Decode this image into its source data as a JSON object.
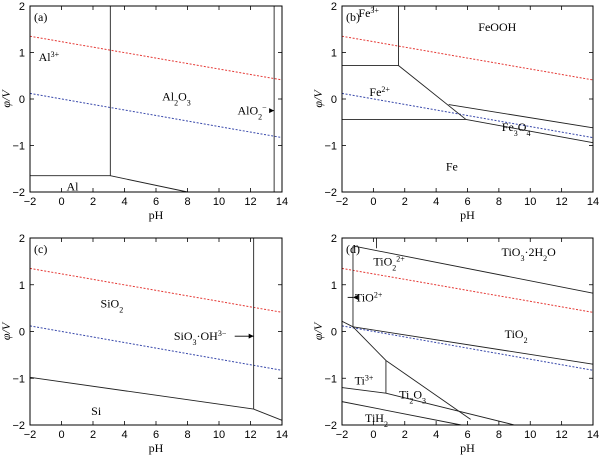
{
  "chart_data": [
    {
      "type": "line",
      "panel_label": "(a)",
      "xlabel": "pH",
      "ylabel": "φ/V",
      "xlim": [
        -2,
        14
      ],
      "ylim": [
        -2,
        2
      ],
      "xticks": [
        -2,
        0,
        2,
        4,
        6,
        8,
        10,
        12,
        14
      ],
      "yticks": [
        -2,
        -1,
        0,
        1,
        2
      ],
      "water_lines": {
        "oxygen": {
          "x": [
            -2,
            14
          ],
          "y": [
            1.35,
            0.41
          ],
          "color": "#e53935"
        },
        "hydrogen": {
          "x": [
            -2,
            14
          ],
          "y": [
            0.12,
            -0.83
          ],
          "color": "#3949ab"
        }
      },
      "boundaries": [
        {
          "x": [
            3.1,
            3.1
          ],
          "y": [
            2,
            -1.65
          ]
        },
        {
          "x": [
            -2,
            3.1
          ],
          "y": [
            -1.65,
            -1.65
          ]
        },
        {
          "x": [
            3.1,
            8.0
          ],
          "y": [
            -1.65,
            -2.0
          ]
        },
        {
          "x": [
            13.5,
            13.5
          ],
          "y": [
            2,
            -2
          ]
        }
      ],
      "regions": [
        {
          "label": "Al³⁺",
          "x": -0.8,
          "y": 0.9
        },
        {
          "label": "Al₂O₃",
          "x": 7.3,
          "y": 0.05
        },
        {
          "label": "AlO₂⁻",
          "x": 12.1,
          "y": -0.25,
          "arrow_to": 13.5
        },
        {
          "label": "Al",
          "x": 0.7,
          "y": -1.88
        }
      ]
    },
    {
      "type": "line",
      "panel_label": "(b)",
      "xlabel": "pH",
      "ylabel": "φ/V",
      "xlim": [
        -2,
        14
      ],
      "ylim": [
        -2,
        2
      ],
      "xticks": [
        -2,
        0,
        2,
        4,
        6,
        8,
        10,
        12,
        14
      ],
      "yticks": [
        -2,
        -1,
        0,
        1,
        2
      ],
      "water_lines": {
        "oxygen": {
          "x": [
            -2,
            14
          ],
          "y": [
            1.35,
            0.41
          ],
          "color": "#e53935"
        },
        "hydrogen": {
          "x": [
            -2,
            14
          ],
          "y": [
            0.12,
            -0.83
          ],
          "color": "#3949ab"
        }
      },
      "boundaries": [
        {
          "x": [
            1.6,
            1.6
          ],
          "y": [
            2,
            0.72
          ]
        },
        {
          "x": [
            -2,
            1.6
          ],
          "y": [
            0.72,
            0.72
          ]
        },
        {
          "x": [
            1.6,
            5.9
          ],
          "y": [
            0.72,
            -0.44
          ]
        },
        {
          "x": [
            -2,
            5.9
          ],
          "y": [
            -0.44,
            -0.44
          ]
        },
        {
          "x": [
            4.8,
            14
          ],
          "y": [
            -0.12,
            -0.62
          ]
        },
        {
          "x": [
            5.9,
            14
          ],
          "y": [
            -0.44,
            -0.94
          ]
        }
      ],
      "regions": [
        {
          "label": "Fe³⁺",
          "x": -0.3,
          "y": 1.85
        },
        {
          "label": "FeOOH",
          "x": 7.9,
          "y": 1.55
        },
        {
          "label": "Fe²⁺",
          "x": 0.4,
          "y": 0.15
        },
        {
          "label": "Fe₃O₄",
          "x": 9.1,
          "y": -0.6
        },
        {
          "label": "Fe",
          "x": 5.0,
          "y": -1.45
        }
      ]
    },
    {
      "type": "line",
      "panel_label": "(c)",
      "xlabel": "pH",
      "ylabel": "φ/V",
      "xlim": [
        -2,
        14
      ],
      "ylim": [
        -2,
        2
      ],
      "xticks": [
        -2,
        0,
        2,
        4,
        6,
        8,
        10,
        12,
        14
      ],
      "yticks": [
        -2,
        -1,
        0,
        1,
        2
      ],
      "water_lines": {
        "oxygen": {
          "x": [
            -2,
            14
          ],
          "y": [
            1.35,
            0.41
          ],
          "color": "#e53935"
        },
        "hydrogen": {
          "x": [
            -2,
            14
          ],
          "y": [
            0.12,
            -0.83
          ],
          "color": "#3949ab"
        }
      },
      "boundaries": [
        {
          "x": [
            12.2,
            12.2
          ],
          "y": [
            2,
            -1.66
          ]
        },
        {
          "x": [
            -2,
            12.2
          ],
          "y": [
            -0.98,
            -1.66
          ]
        },
        {
          "x": [
            12.2,
            14
          ],
          "y": [
            -1.66,
            -1.9
          ]
        }
      ],
      "regions": [
        {
          "label": "SiO₂",
          "x": 3.2,
          "y": 0.6
        },
        {
          "label": "SiO₃·OH³⁻",
          "x": 8.8,
          "y": -0.1,
          "arrow_to": 12.2
        },
        {
          "label": "Si",
          "x": 2.2,
          "y": -1.7
        }
      ]
    },
    {
      "type": "line",
      "panel_label": "(d)",
      "xlabel": "pH",
      "ylabel": "φ/V",
      "xlim": [
        -2,
        14
      ],
      "ylim": [
        -2,
        2
      ],
      "xticks": [
        -2,
        0,
        2,
        4,
        6,
        8,
        10,
        12,
        14
      ],
      "yticks": [
        -2,
        -1,
        0,
        1,
        2
      ],
      "water_lines": {
        "oxygen": {
          "x": [
            -2,
            14
          ],
          "y": [
            1.35,
            0.41
          ],
          "color": "#e53935"
        },
        "hydrogen": {
          "x": [
            -2,
            14
          ],
          "y": [
            0.12,
            -0.83
          ],
          "color": "#3949ab"
        }
      },
      "boundaries": [
        {
          "x": [
            -1.3,
            14
          ],
          "y": [
            1.83,
            0.82
          ]
        },
        {
          "x": [
            -1.3,
            -1.3
          ],
          "y": [
            1.83,
            0.1
          ]
        },
        {
          "x": [
            0.2,
            0.2
          ],
          "y": [
            2,
            1.78
          ]
        },
        {
          "x": [
            -2,
            -1.3
          ],
          "y": [
            0.22,
            0.1
          ]
        },
        {
          "x": [
            -1.3,
            14
          ],
          "y": [
            0.1,
            -0.7
          ]
        },
        {
          "x": [
            -1.3,
            0.8
          ],
          "y": [
            0.1,
            -0.62
          ]
        },
        {
          "x": [
            0.8,
            0.8
          ],
          "y": [
            -0.62,
            -1.32
          ]
        },
        {
          "x": [
            0.8,
            6.2
          ],
          "y": [
            -0.62,
            -1.88
          ]
        },
        {
          "x": [
            -2,
            0.8
          ],
          "y": [
            -1.2,
            -1.32
          ]
        },
        {
          "x": [
            0.8,
            9.0
          ],
          "y": [
            -1.32,
            -2.0
          ]
        },
        {
          "x": [
            -2,
            5.6
          ],
          "y": [
            -1.5,
            -2.0
          ]
        }
      ],
      "regions": [
        {
          "label": "TiO₂²⁺",
          "x": 1.0,
          "y": 1.5
        },
        {
          "label": "TiO₃·2H₂O",
          "x": 9.9,
          "y": 1.7
        },
        {
          "label": "TiO²⁺",
          "x": -0.3,
          "y": 0.73,
          "arrow_to": -1.3
        },
        {
          "label": "TiO₂",
          "x": 9.1,
          "y": -0.05
        },
        {
          "label": "Ti³⁺",
          "x": -0.6,
          "y": -1.05
        },
        {
          "label": "Ti₂O₃",
          "x": 2.5,
          "y": -1.35
        },
        {
          "label": "TiH₂",
          "x": 0.2,
          "y": -1.85
        }
      ]
    }
  ]
}
